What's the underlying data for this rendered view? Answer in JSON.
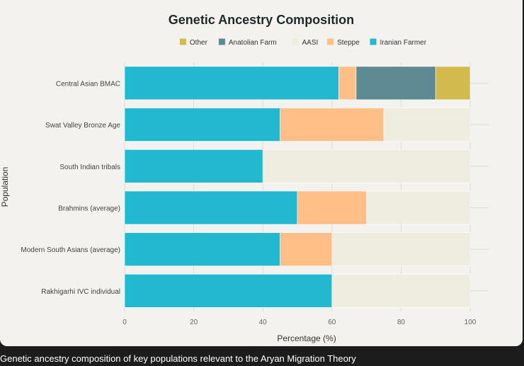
{
  "caption": "Genetic ancestry composition of key populations relevant to the Aryan Migration Theory",
  "colors": {
    "Iranian Farmer": "#22b8cf",
    "Steppe": "#ffbf86",
    "AASI": "#eeede0",
    "Anatolian Farm": "#5e8a93",
    "Other": "#d2ba4c"
  },
  "chart_data": {
    "type": "bar",
    "orientation": "horizontal",
    "stacked": true,
    "title": "Genetic Ancestry Composition",
    "xlabel": "Percentage (%)",
    "ylabel": "Population",
    "xlim": [
      0,
      100
    ],
    "xticks": [
      "0",
      "20",
      "40",
      "60",
      "80",
      "100"
    ],
    "legend_position": "top",
    "legend": [
      "Other",
      "Anatolian Farm",
      "AASI",
      "Steppe",
      "Iranian Farmer"
    ],
    "categories": [
      "Central Asian BMAC",
      "Swat Valley Bronze Age",
      "South Indian tribals",
      "Brahmins (average)",
      "Modern South Asians (average)",
      "Rakhigarhi IVC individual"
    ],
    "series": [
      {
        "name": "Iranian Farmer",
        "values": [
          62,
          45,
          40,
          50,
          45,
          60
        ]
      },
      {
        "name": "Steppe",
        "values": [
          5,
          30,
          0,
          20,
          15,
          0
        ]
      },
      {
        "name": "AASI",
        "values": [
          0,
          25,
          60,
          30,
          40,
          40
        ]
      },
      {
        "name": "Anatolian Farm",
        "values": [
          23,
          0,
          0,
          0,
          0,
          0
        ]
      },
      {
        "name": "Other",
        "values": [
          10,
          0,
          0,
          0,
          0,
          0
        ]
      }
    ]
  }
}
